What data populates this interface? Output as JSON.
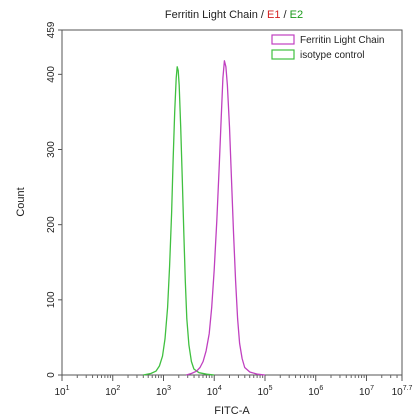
{
  "chart_data": {
    "type": "line",
    "title_parts": [
      {
        "text": "Ferritin Light Chain",
        "color": "#222222"
      },
      {
        "text": " / ",
        "color": "#222222"
      },
      {
        "text": "E1",
        "color": "#d42020"
      },
      {
        "text": " / ",
        "color": "#222222"
      },
      {
        "text": "E2",
        "color": "#1a9a1a"
      }
    ],
    "xlabel": "FITC-A",
    "ylabel": "Count",
    "x_scale": "log",
    "xlim_exponent": [
      1,
      7.7
    ],
    "ylim": [
      0,
      459
    ],
    "x_ticks": [
      {
        "base": "10",
        "exp": "1",
        "value": 1
      },
      {
        "base": "10",
        "exp": "2",
        "value": 2
      },
      {
        "base": "10",
        "exp": "3",
        "value": 3
      },
      {
        "base": "10",
        "exp": "4",
        "value": 4
      },
      {
        "base": "10",
        "exp": "5",
        "value": 5
      },
      {
        "base": "10",
        "exp": "6",
        "value": 6
      },
      {
        "base": "10",
        "exp": "7",
        "value": 7
      },
      {
        "base": "10",
        "exp": "7.7",
        "value": 7.7
      }
    ],
    "y_ticks": [
      {
        "label": "0",
        "value": 0
      },
      {
        "label": "100",
        "value": 100
      },
      {
        "label": "200",
        "value": 200
      },
      {
        "label": "300",
        "value": 300
      },
      {
        "label": "400",
        "value": 400
      },
      {
        "label": "459",
        "value": 459
      }
    ],
    "legend": {
      "position": "top-right",
      "entries": [
        {
          "name": "Ferritin Light Chain",
          "color": "#c040c0"
        },
        {
          "name": "isotype control",
          "color": "#40c040"
        }
      ]
    },
    "series": [
      {
        "name": "isotype control",
        "color": "#40c040",
        "points": [
          [
            2.6,
            0
          ],
          [
            2.75,
            2
          ],
          [
            2.85,
            5
          ],
          [
            2.92,
            12
          ],
          [
            2.98,
            25
          ],
          [
            3.03,
            48
          ],
          [
            3.08,
            90
          ],
          [
            3.12,
            145
          ],
          [
            3.16,
            215
          ],
          [
            3.19,
            285
          ],
          [
            3.22,
            350
          ],
          [
            3.25,
            395
          ],
          [
            3.27,
            410
          ],
          [
            3.29,
            405
          ],
          [
            3.31,
            385
          ],
          [
            3.34,
            330
          ],
          [
            3.37,
            260
          ],
          [
            3.4,
            190
          ],
          [
            3.43,
            125
          ],
          [
            3.46,
            75
          ],
          [
            3.5,
            40
          ],
          [
            3.55,
            18
          ],
          [
            3.6,
            8
          ],
          [
            3.7,
            3
          ],
          [
            3.85,
            1
          ],
          [
            4.0,
            0
          ]
        ]
      },
      {
        "name": "Ferritin Light Chain",
        "color": "#c040c0",
        "points": [
          [
            3.45,
            0
          ],
          [
            3.55,
            2
          ],
          [
            3.65,
            5
          ],
          [
            3.72,
            10
          ],
          [
            3.78,
            18
          ],
          [
            3.84,
            32
          ],
          [
            3.9,
            55
          ],
          [
            3.95,
            90
          ],
          [
            4.0,
            140
          ],
          [
            4.05,
            205
          ],
          [
            4.1,
            280
          ],
          [
            4.14,
            345
          ],
          [
            4.17,
            395
          ],
          [
            4.2,
            418
          ],
          [
            4.23,
            410
          ],
          [
            4.26,
            385
          ],
          [
            4.3,
            330
          ],
          [
            4.34,
            260
          ],
          [
            4.38,
            190
          ],
          [
            4.42,
            125
          ],
          [
            4.46,
            75
          ],
          [
            4.5,
            42
          ],
          [
            4.55,
            22
          ],
          [
            4.6,
            10
          ],
          [
            4.7,
            4
          ],
          [
            4.85,
            1
          ],
          [
            5.0,
            0
          ]
        ]
      }
    ]
  }
}
